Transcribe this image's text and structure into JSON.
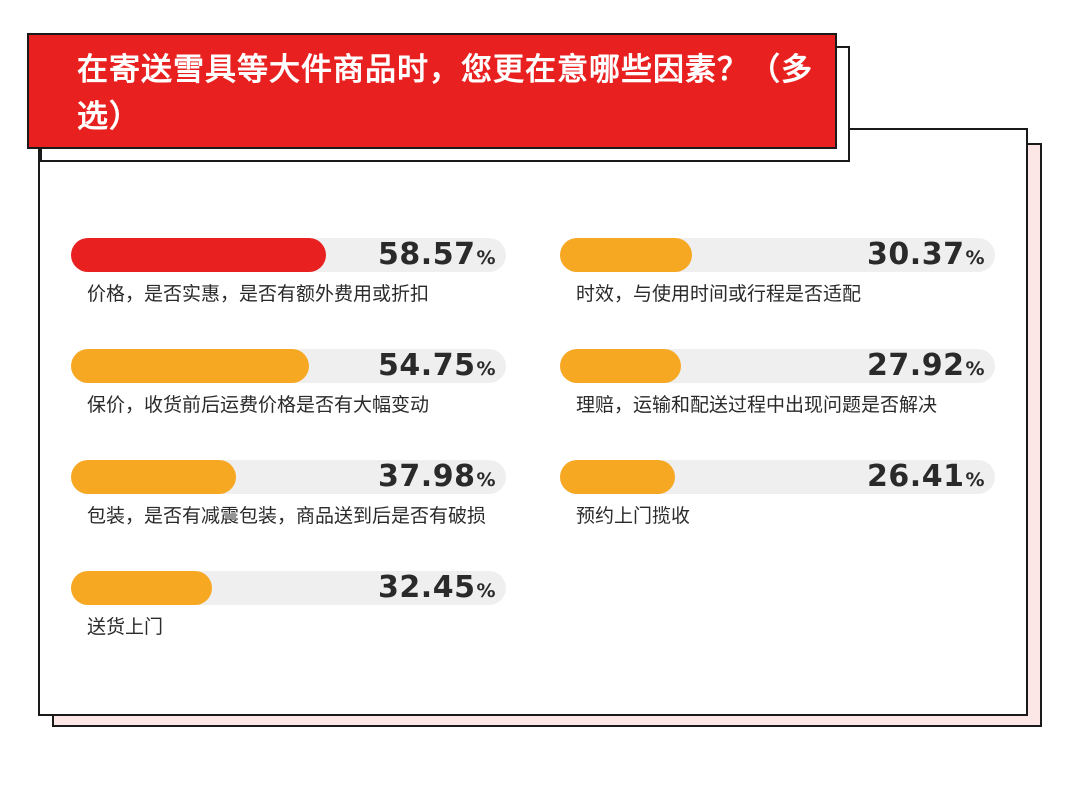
{
  "title": "在寄送雪具等大件商品时，您更在意哪些因素？（多选）",
  "colors": {
    "highlight": "#e8201f",
    "bar": "#f7a823",
    "track": "#efefef"
  },
  "chart_data": {
    "type": "bar",
    "title": "在寄送雪具等大件商品时，您更在意哪些因素？（多选）",
    "unit": "%",
    "categories": [
      "价格，是否实惠，是否有额外费用或折扣",
      "保价，收货前后运费价格是否有大幅变动",
      "包装，是否有减震包装，商品送到后是否有破损",
      "送货上门",
      "时效，与使用时间或行程是否适配",
      "理赔，运输和配送过程中出现问题是否解决",
      "预约上门揽收"
    ],
    "values": [
      58.57,
      54.75,
      37.98,
      32.45,
      30.37,
      27.92,
      26.41
    ],
    "display_values": [
      "58.57",
      "54.75",
      "37.98",
      "32.45",
      "30.37",
      "27.92",
      "26.41"
    ],
    "highlight_index": 0,
    "xlim": [
      0,
      100
    ]
  }
}
